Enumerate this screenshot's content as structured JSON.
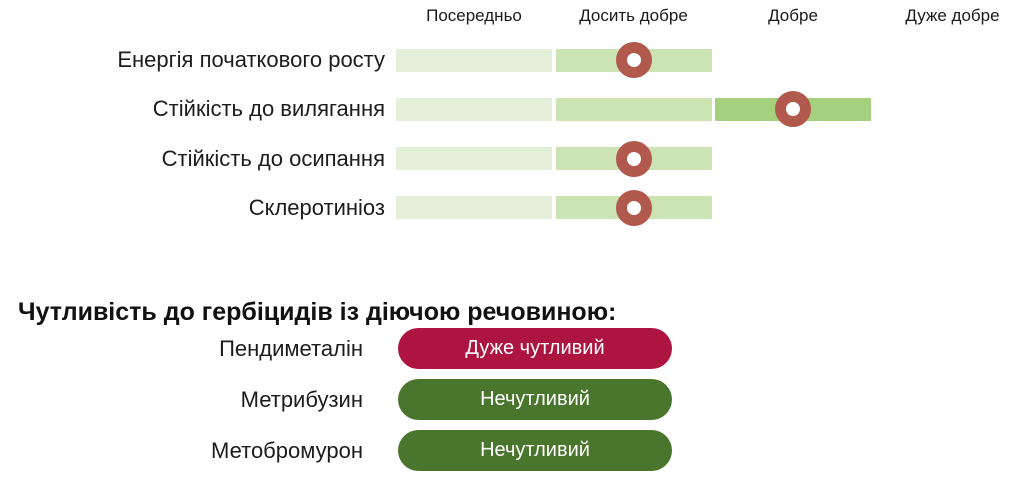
{
  "chart_data": {
    "type": "dot-bar-rating",
    "title": "",
    "scale_labels": [
      "Посередньо",
      "Досить добре",
      "Добре",
      "Дуже добре"
    ],
    "scale_min": 1,
    "scale_max": 4,
    "rows": [
      {
        "label": "Енергія початкового росту",
        "value": "Досить добре",
        "rating": 2
      },
      {
        "label": "Стійкість до вилягання",
        "value": "Добре",
        "rating": 3
      },
      {
        "label": "Стійкість до осипання",
        "value": "Досить добре",
        "rating": 2
      },
      {
        "label": "Склеротиніоз",
        "value": "Досить добре",
        "rating": 2
      }
    ],
    "colors": {
      "segment_shades": [
        "#e3efd8",
        "#cce3b4",
        "#a5d17f"
      ],
      "marker_ring": "#b2594e",
      "marker_center": "#ffffff"
    },
    "legend_position": "top",
    "grid": false
  },
  "herbicide_section": {
    "title": "Чутливість до гербіцидів із діючою речовиною:",
    "rows": [
      {
        "label": "Пендиметалін",
        "status": "Дуже чутливий",
        "color": "#ae1440"
      },
      {
        "label": "Метрибузин",
        "status": "Нечутливий",
        "color": "#4a752c"
      },
      {
        "label": "Метобромурон",
        "status": "Нечутливий",
        "color": "#4a752c"
      }
    ]
  }
}
